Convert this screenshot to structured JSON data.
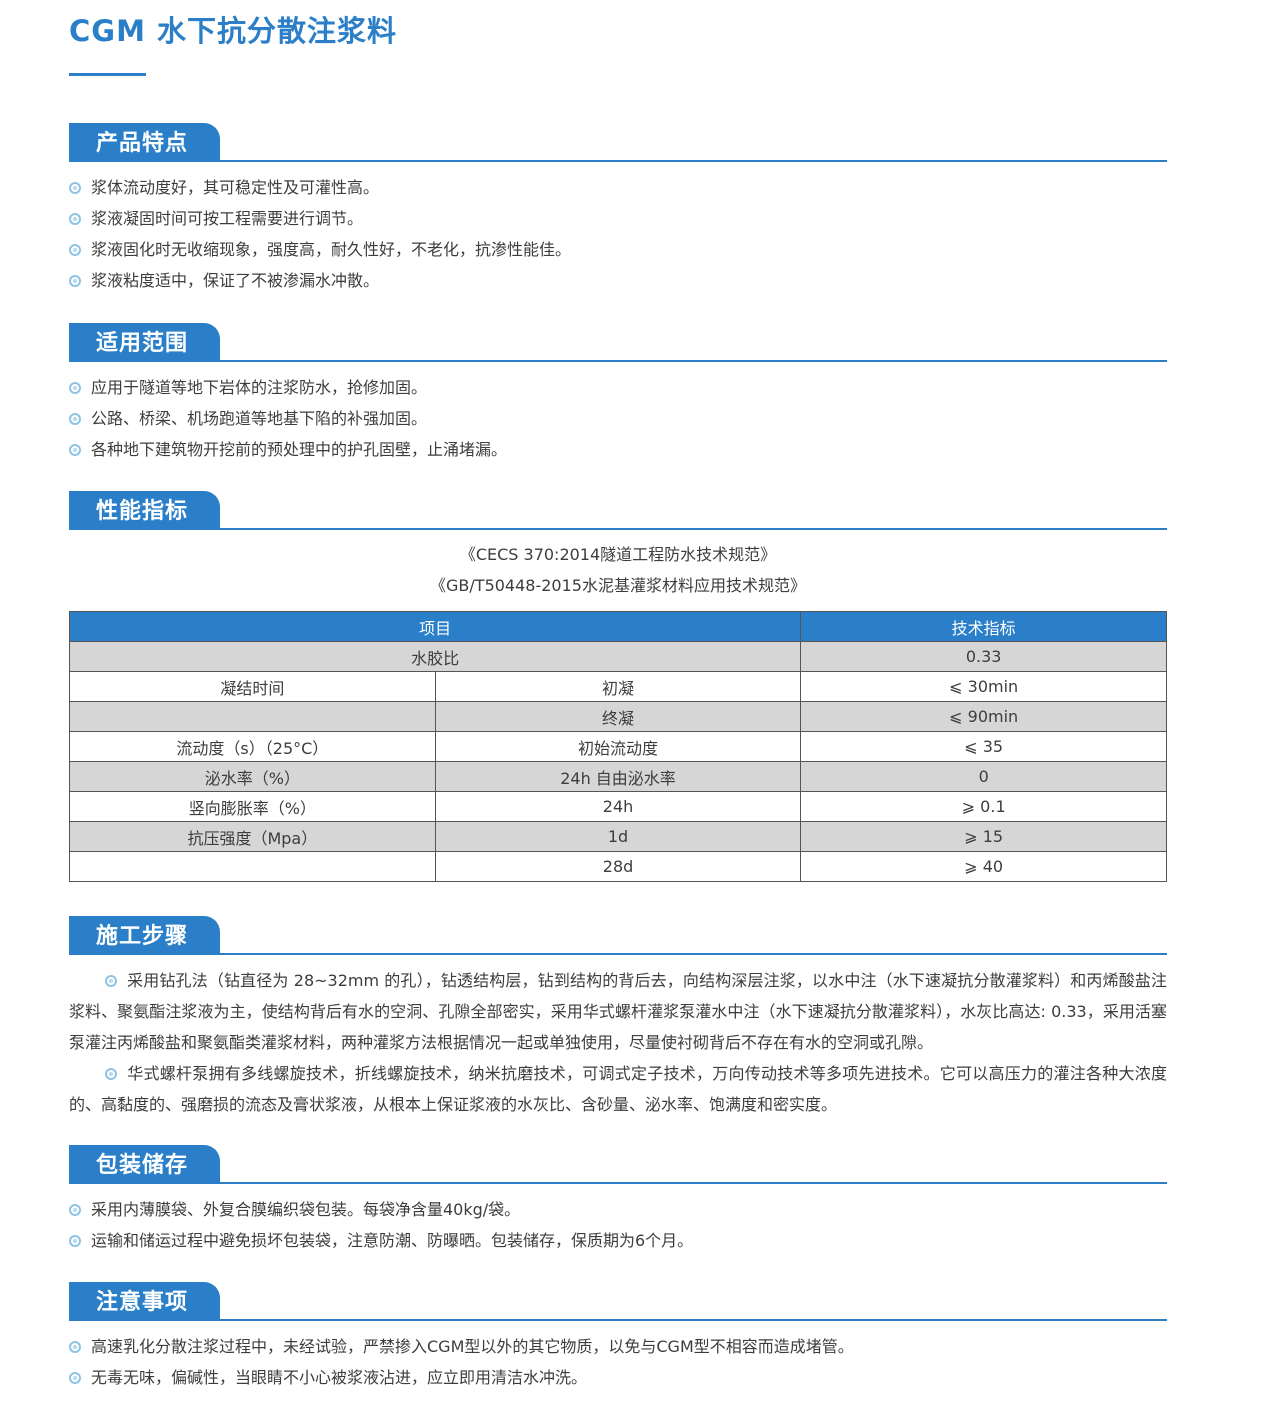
{
  "title": "CGM 水下抗分散注浆料",
  "colors": {
    "accent": "#2a7fc8",
    "row_gray": "#d6d6d6"
  },
  "features": {
    "heading": "产品特点",
    "items": [
      "浆体流动度好，其可稳定性及可灌性高。",
      "浆液凝固时间可按工程需要进行调节。",
      "浆液固化时无收缩现象，强度高，耐久性好，不老化，抗渗性能佳。",
      "浆液粘度适中，保证了不被渗漏水冲散。"
    ]
  },
  "scope": {
    "heading": "适用范围",
    "items": [
      "应用于隧道等地下岩体的注浆防水，抢修加固。",
      "公路、桥梁、机场跑道等地基下陷的补强加固。",
      "各种地下建筑物开挖前的预处理中的护孔固壁，止涌堵漏。"
    ]
  },
  "performance": {
    "heading": "性能指标",
    "standards": [
      "《CECS 370:2014隧道工程防水技术规范》",
      "《GB/T50448-2015水泥基灌浆材料应用技术规范》"
    ],
    "table": {
      "headers": [
        "项目",
        "技术指标"
      ],
      "rows": [
        [
          "水胶比",
          "",
          "0.33"
        ],
        [
          "凝结时间",
          "初凝",
          "⩽ 30min"
        ],
        [
          "",
          "终凝",
          "⩽ 90min"
        ],
        [
          "流动度（s）（25°C）",
          "初始流动度",
          "⩽ 35"
        ],
        [
          "泌水率（%）",
          "24h 自由泌水率",
          "0"
        ],
        [
          "竖向膨胀率（%）",
          "24h",
          "⩾ 0.1"
        ],
        [
          "抗压强度（Mpa）",
          "1d",
          "⩾ 15"
        ],
        [
          "",
          "28d",
          "⩾ 40"
        ]
      ]
    }
  },
  "construction": {
    "heading": "施工步骤",
    "paragraphs": [
      "采用钻孔法（钻直径为 28~32mm 的孔），钻透结构层，钻到结构的背后去，向结构深层注浆，以水中注（水下速凝抗分散灌浆料）和丙烯酸盐注浆料、聚氨酯注浆液为主，使结构背后有水的空洞、孔隙全部密实，采用华式螺杆灌浆泵灌水中注（水下速凝抗分散灌浆料），水灰比高达: 0.33，采用活塞泵灌注丙烯酸盐和聚氨酯类灌浆材料，两种灌浆方法根据情况一起或单独使用，尽量使衬砌背后不存在有水的空洞或孔隙。",
      "华式螺杆泵拥有多线螺旋技术，折线螺旋技术，纳米抗磨技术，可调式定子技术，万向传动技术等多项先进技术。它可以高压力的灌注各种大浓度的、高黏度的、强磨损的流态及膏状浆液，从根本上保证浆液的水灰比、含砂量、泌水率、饱满度和密实度。"
    ]
  },
  "packaging": {
    "heading": "包装储存",
    "items": [
      "采用内薄膜袋、外复合膜编织袋包装。每袋净含量40kg/袋。",
      "运输和储运过程中避免损坏包装袋，注意防潮、防曝晒。包装储存，保质期为6个月。"
    ]
  },
  "notes": {
    "heading": "注意事项",
    "items": [
      "高速乳化分散注浆过程中，未经试验，严禁掺入CGM型以外的其它物质，以免与CGM型不相容而造成堵管。",
      "无毒无味，偏碱性，当眼睛不小心被浆液沾进，应立即用清洁水冲洗。"
    ]
  }
}
